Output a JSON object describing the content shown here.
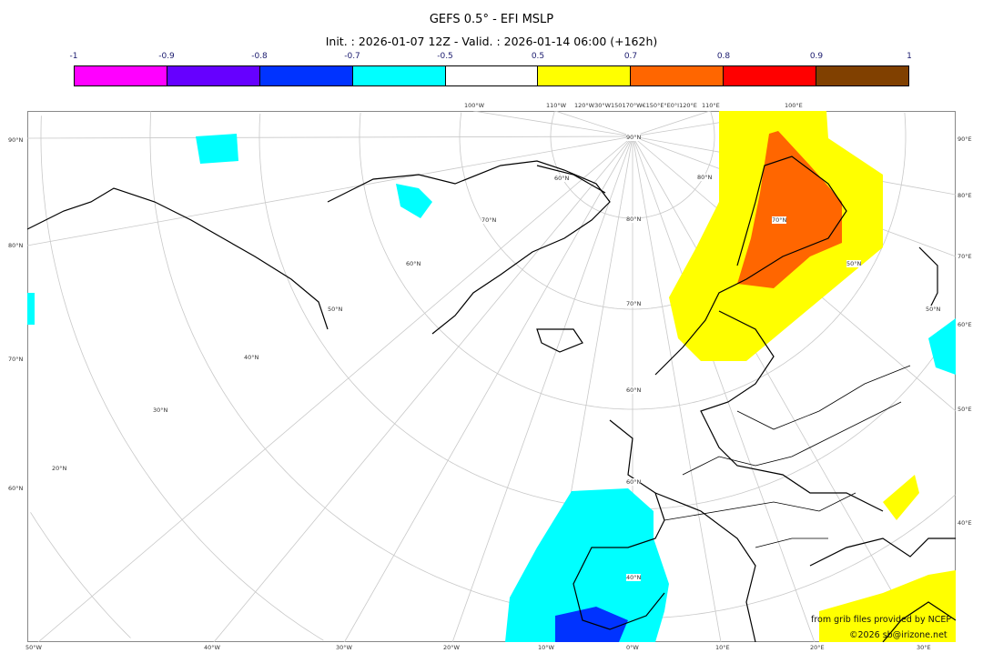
{
  "title": "GEFS 0.5° - EFI MSLP",
  "subtitle": "Init. : 2026-01-07 12Z - Valid. : 2026-01-14 06:00 (+162h)",
  "colorbar": {
    "labels": [
      "-1",
      "-0.9",
      "-0.8",
      "-0.7",
      "-0.5",
      "0.5",
      "0.7",
      "0.8",
      "0.9",
      "1"
    ],
    "colors": [
      "#ff00ff",
      "#6600ff",
      "#0033ff",
      "#00ffff",
      "#ffffff",
      "#ffff00",
      "#ff6600",
      "#ff0000",
      "#804000"
    ]
  },
  "axes": {
    "left": [
      "90°N",
      "80°N",
      "70°N",
      "60°N"
    ],
    "right": [
      "90°E",
      "80°E",
      "70°E",
      "60°E",
      "50°E",
      "40°E"
    ],
    "bottom": [
      "50°W",
      "40°W",
      "30°W",
      "20°W",
      "10°W",
      "0°W",
      "10°E",
      "20°E",
      "30°E"
    ],
    "top": [
      "100°W",
      "110°W",
      "120°W30°W150170°W€150°E°E0°I120°E",
      "110°E",
      "100°E"
    ],
    "interior": [
      "90°N",
      "80°N",
      "70°N",
      "60°N",
      "50°N",
      "40°N",
      "30°N",
      "20°N",
      "80°N",
      "70°N",
      "60°N",
      "50°N",
      "70°N",
      "60°N",
      "50°N",
      "40°N",
      "60°N"
    ]
  },
  "credits": {
    "source": "from grib files provided by NCEP",
    "copyright": "©2026 sb@irizone.net"
  }
}
